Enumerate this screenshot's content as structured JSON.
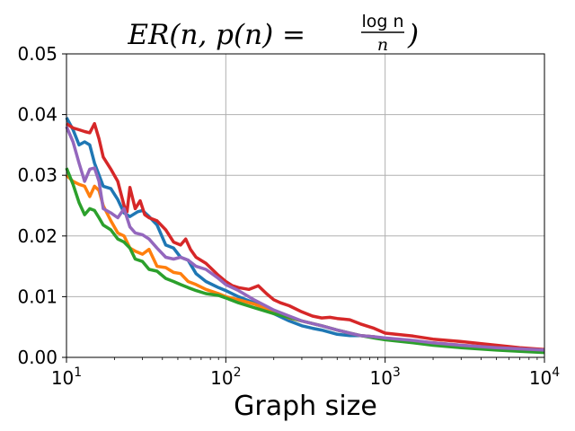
{
  "chart_data": {
    "type": "line",
    "title": {
      "prefix": "ER(n, p(n) = ",
      "numerator": "log n",
      "denominator": "n",
      "suffix": ")"
    },
    "xlabel": "Graph size",
    "ylabel": "",
    "xscale": "log",
    "xlim": [
      10,
      10000
    ],
    "ylim": [
      0,
      0.05
    ],
    "grid": true,
    "x_ticks": [
      {
        "value": 10,
        "base": "10",
        "exp": "1"
      },
      {
        "value": 100,
        "base": "10",
        "exp": "2"
      },
      {
        "value": 1000,
        "base": "10",
        "exp": "3"
      },
      {
        "value": 10000,
        "base": "10",
        "exp": "4"
      }
    ],
    "y_ticks": [
      {
        "value": 0,
        "label": "0.00"
      },
      {
        "value": 0.01,
        "label": "0.01"
      },
      {
        "value": 0.02,
        "label": "0.02"
      },
      {
        "value": 0.03,
        "label": "0.03"
      },
      {
        "value": 0.04,
        "label": "0.04"
      },
      {
        "value": 0.05,
        "label": "0.05"
      }
    ],
    "series": [
      {
        "name": "series-blue",
        "color": "#1f77b4",
        "x": [
          10,
          11,
          12,
          13,
          14,
          15,
          17,
          19,
          21,
          23,
          25,
          28,
          30,
          33,
          37,
          42,
          47,
          52,
          58,
          65,
          75,
          90,
          100,
          120,
          150,
          180,
          200,
          250,
          300,
          350,
          400,
          500,
          600,
          700,
          850,
          1000,
          1500,
          2000,
          3000,
          5000,
          7000,
          10000
        ],
        "y": [
          0.0395,
          0.0375,
          0.035,
          0.0355,
          0.035,
          0.032,
          0.0282,
          0.0278,
          0.026,
          0.0238,
          0.0232,
          0.024,
          0.0242,
          0.0232,
          0.0218,
          0.0185,
          0.018,
          0.0165,
          0.016,
          0.0138,
          0.0125,
          0.0115,
          0.011,
          0.01,
          0.009,
          0.008,
          0.0072,
          0.006,
          0.0052,
          0.0048,
          0.0045,
          0.0038,
          0.0036,
          0.0036,
          0.0034,
          0.003,
          0.0025,
          0.0022,
          0.0018,
          0.0015,
          0.0013,
          0.001
        ]
      },
      {
        "name": "series-orange",
        "color": "#ff7f0e",
        "x": [
          10,
          11,
          12,
          13,
          14,
          15,
          16,
          17,
          19,
          21,
          23,
          25,
          27,
          30,
          33,
          37,
          42,
          47,
          52,
          58,
          65,
          75,
          90,
          100,
          120,
          150,
          200,
          250,
          300,
          400,
          500,
          600,
          700,
          850,
          1000,
          1500,
          2000,
          3000,
          5000,
          7000,
          10000
        ],
        "y": [
          0.03,
          0.029,
          0.0285,
          0.0282,
          0.0265,
          0.0282,
          0.0275,
          0.025,
          0.0225,
          0.0205,
          0.02,
          0.018,
          0.0175,
          0.017,
          0.0178,
          0.015,
          0.0148,
          0.014,
          0.0138,
          0.0125,
          0.012,
          0.0112,
          0.0105,
          0.01,
          0.0095,
          0.0088,
          0.0075,
          0.0065,
          0.006,
          0.0052,
          0.0045,
          0.004,
          0.0036,
          0.0034,
          0.003,
          0.0027,
          0.0024,
          0.002,
          0.0016,
          0.0013,
          0.0011
        ]
      },
      {
        "name": "series-green",
        "color": "#2ca02c",
        "x": [
          10,
          11,
          12,
          13,
          14,
          15,
          16,
          17,
          19,
          21,
          23,
          25,
          27,
          30,
          33,
          37,
          42,
          47,
          52,
          58,
          65,
          75,
          90,
          100,
          120,
          150,
          200,
          250,
          300,
          400,
          500,
          600,
          700,
          850,
          1000,
          1500,
          2000,
          3000,
          5000,
          7000,
          10000
        ],
        "y": [
          0.0312,
          0.0285,
          0.0255,
          0.0235,
          0.0245,
          0.0242,
          0.023,
          0.0218,
          0.021,
          0.0195,
          0.019,
          0.018,
          0.0162,
          0.0158,
          0.0145,
          0.0142,
          0.013,
          0.0125,
          0.012,
          0.0115,
          0.011,
          0.0105,
          0.0102,
          0.0098,
          0.009,
          0.0082,
          0.0072,
          0.0066,
          0.006,
          0.0052,
          0.0045,
          0.004,
          0.0036,
          0.0032,
          0.0029,
          0.0024,
          0.002,
          0.0016,
          0.0012,
          0.001,
          0.0008
        ]
      },
      {
        "name": "series-red",
        "color": "#d62728",
        "x": [
          10,
          11,
          12,
          13,
          14,
          15,
          16,
          17,
          19,
          21,
          23,
          24,
          25,
          27,
          29,
          31,
          33,
          37,
          42,
          47,
          52,
          56,
          60,
          65,
          75,
          90,
          100,
          110,
          120,
          140,
          160,
          180,
          200,
          220,
          250,
          300,
          350,
          400,
          450,
          500,
          600,
          700,
          850,
          1000,
          1500,
          2000,
          3000,
          5000,
          7000,
          10000
        ],
        "y": [
          0.0385,
          0.0378,
          0.0375,
          0.0372,
          0.037,
          0.0385,
          0.036,
          0.033,
          0.031,
          0.029,
          0.025,
          0.024,
          0.028,
          0.0245,
          0.0258,
          0.0235,
          0.023,
          0.0225,
          0.021,
          0.019,
          0.0185,
          0.0195,
          0.0178,
          0.0165,
          0.0155,
          0.0135,
          0.0125,
          0.0118,
          0.0115,
          0.0112,
          0.0118,
          0.0105,
          0.0095,
          0.009,
          0.0085,
          0.0075,
          0.0068,
          0.0065,
          0.0066,
          0.0064,
          0.0062,
          0.0055,
          0.0048,
          0.004,
          0.0035,
          0.003,
          0.0026,
          0.002,
          0.0016,
          0.0013
        ]
      },
      {
        "name": "series-purple",
        "color": "#9467bd",
        "x": [
          10,
          11,
          12,
          13,
          14,
          15,
          16,
          17,
          19,
          21,
          23,
          25,
          27,
          30,
          33,
          37,
          42,
          47,
          52,
          58,
          65,
          75,
          90,
          100,
          120,
          150,
          200,
          250,
          300,
          400,
          500,
          600,
          700,
          850,
          1000,
          1500,
          2000,
          3000,
          5000,
          7000,
          10000
        ],
        "y": [
          0.038,
          0.0355,
          0.032,
          0.029,
          0.031,
          0.0312,
          0.029,
          0.0245,
          0.0238,
          0.023,
          0.0245,
          0.0215,
          0.0205,
          0.0202,
          0.0195,
          0.018,
          0.0165,
          0.0162,
          0.0165,
          0.016,
          0.015,
          0.0145,
          0.013,
          0.012,
          0.011,
          0.0095,
          0.0078,
          0.0068,
          0.006,
          0.0052,
          0.0045,
          0.004,
          0.0036,
          0.0034,
          0.0032,
          0.0028,
          0.0024,
          0.002,
          0.0016,
          0.0014,
          0.0012
        ]
      }
    ]
  }
}
